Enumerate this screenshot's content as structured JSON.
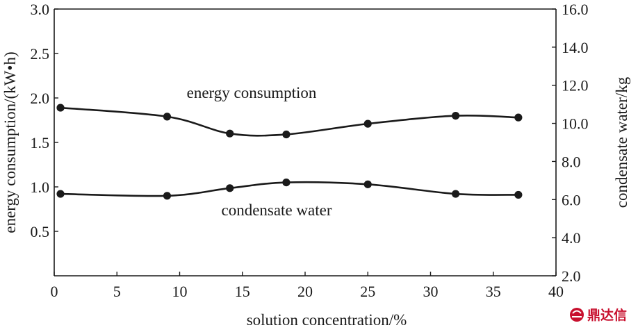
{
  "chart_data": {
    "type": "line",
    "title": "",
    "xlabel": "solution concentration/%",
    "ylabel_left": "energy consumption/(kW•h)",
    "ylabel_right": "condensate water/kg",
    "xlim": [
      0,
      40
    ],
    "ylim_left": [
      0,
      3.0
    ],
    "ylim_right": [
      2.0,
      16.0
    ],
    "x_ticks": [
      "0",
      "5",
      "10",
      "15",
      "20",
      "25",
      "30",
      "35",
      "40"
    ],
    "y_left_ticks": [
      "0.5",
      "1.0",
      "1.5",
      "2.0",
      "2.5",
      "3.0"
    ],
    "y_right_ticks": [
      "2.0",
      "4.0",
      "6.0",
      "8.0",
      "10.0",
      "12.0",
      "14.0",
      "16.0"
    ],
    "grid": false,
    "series": [
      {
        "name": "energy consumption",
        "axis": "left",
        "x": [
          0.5,
          9,
          14,
          18.5,
          25,
          32,
          37
        ],
        "y": [
          1.89,
          1.79,
          1.6,
          1.59,
          1.71,
          1.8,
          1.78
        ]
      },
      {
        "name": "condensate water",
        "axis": "right",
        "x": [
          0.5,
          9,
          14,
          18.5,
          25,
          32,
          37
        ],
        "y": [
          6.3,
          6.2,
          6.6,
          6.9,
          6.8,
          6.3,
          6.25
        ]
      }
    ]
  },
  "watermark": {
    "text": "鼎达信",
    "icon": "logo-badge-icon",
    "color": "#c8102e"
  }
}
